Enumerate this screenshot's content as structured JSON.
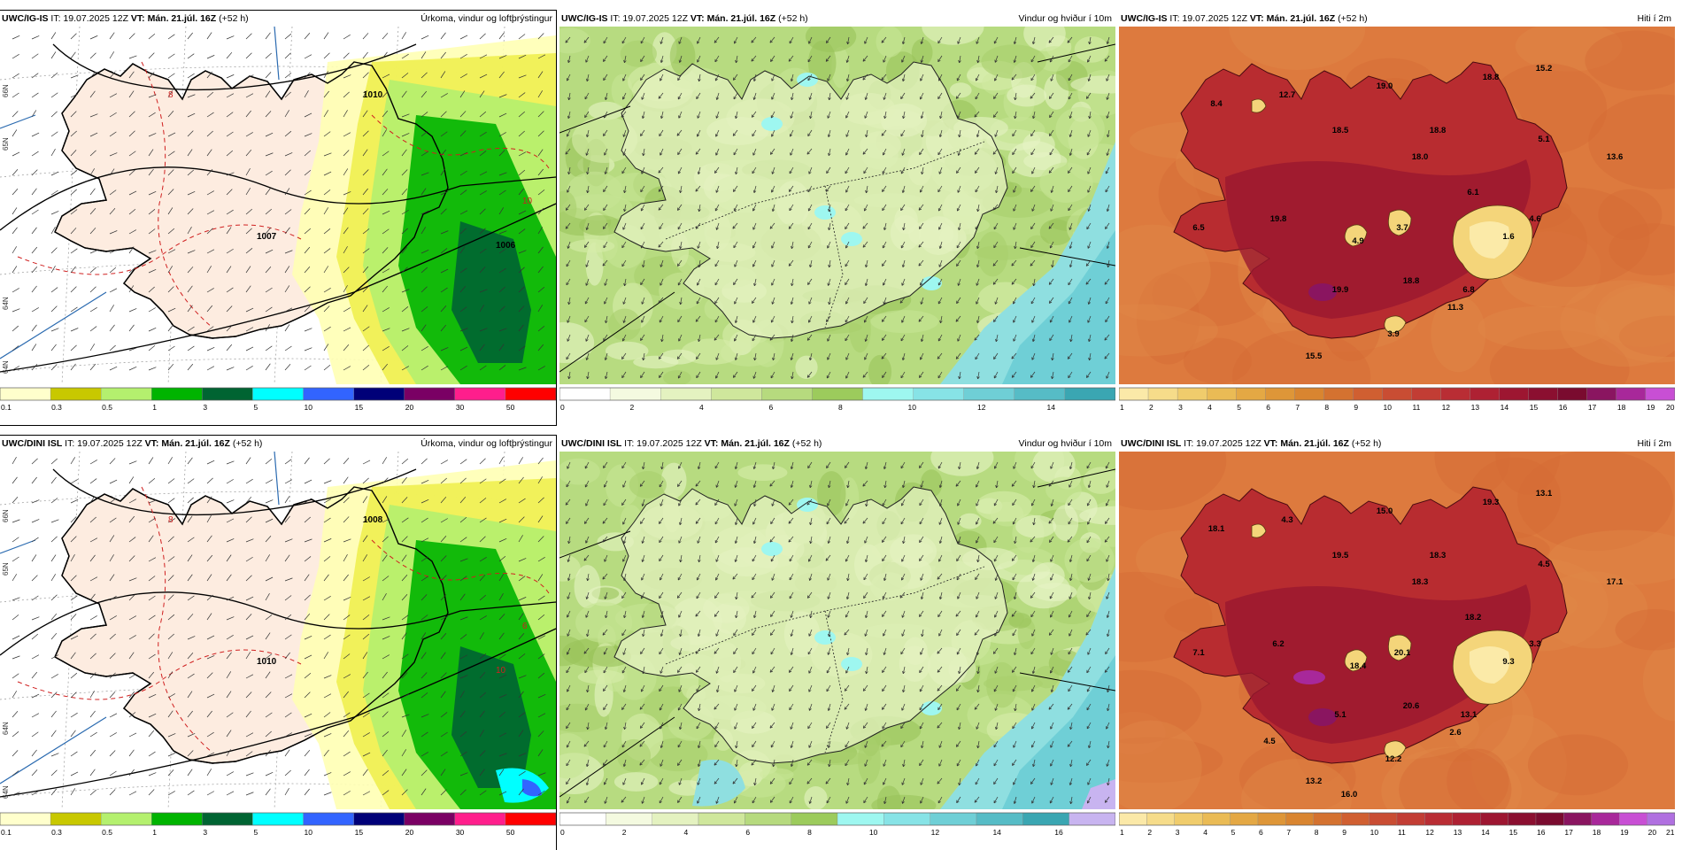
{
  "panels": [
    {
      "id": "igis-precip",
      "header": {
        "model": "UWC/IG-IS",
        "it_label": " IT: 19.07.2025 12Z ",
        "vt_label": "VT:",
        "vt_value": " Mán. 21.júl. 16Z",
        "lead": " (+52 h)",
        "title": "Úrkoma, vindur og loftþrýstingur"
      },
      "type": "precip",
      "map_labels": [
        {
          "t": "1007",
          "cls": "iso"
        },
        {
          "t": "8",
          "cls": "red"
        },
        {
          "t": "1010",
          "cls": "iso"
        },
        {
          "t": "1006",
          "cls": "iso"
        },
        {
          "t": "10",
          "cls": "red"
        }
      ],
      "lat_labels": [
        "66N",
        "65N",
        "64N",
        "64N"
      ],
      "colorbar": {
        "colors": [
          "#ffffcc",
          "#c8c800",
          "#b4f06e",
          "#00b400",
          "#006432",
          "#00ffff",
          "#3264ff",
          "#000078",
          "#7a0064",
          "#ff1e8c",
          "#ff0000"
        ],
        "labels": [
          "0.1",
          "0.3",
          "0.5",
          "1",
          "3",
          "5",
          "10",
          "15",
          "20",
          "30",
          "50"
        ]
      }
    },
    {
      "id": "igis-wind",
      "header": {
        "model": "UWC/IG-IS",
        "it_label": " IT: 19.07.2025 12Z ",
        "vt_label": "VT:",
        "vt_value": " Mán. 21.júl. 16Z",
        "lead": " (+52 h)",
        "title": "Vindur og hviður í 10m"
      },
      "type": "wind",
      "colorbar": {
        "colors": [
          "#ffffff",
          "#f4fae0",
          "#e4f2c0",
          "#cfe79c",
          "#b6da7e",
          "#9ccb5c",
          "#9ef7f0",
          "#87e3e6",
          "#6fcfd6",
          "#56bcc6",
          "#3aa6b2"
        ],
        "labels": [
          "0",
          "2",
          "4",
          "6",
          "8",
          "10",
          "12",
          "14"
        ]
      }
    },
    {
      "id": "igis-temp",
      "header": {
        "model": "UWC/IG-IS",
        "it_label": " IT: 19.07.2025 12Z ",
        "vt_label": "VT:",
        "vt_value": " Mán. 21.júl. 16Z",
        "lead": " (+52 h)",
        "title": "Hiti í 2m"
      },
      "type": "temp",
      "temp_labels": [
        "15.2",
        "18.8",
        "12.7",
        "8.4",
        "19.0",
        "18.8",
        "18.5",
        "18.0",
        "5.1",
        "13.6",
        "6.1",
        "6.5",
        "19.8",
        "4.9",
        "3.7",
        "4.6",
        "1.6",
        "19.9",
        "18.8",
        "6.8",
        "11.3",
        "3.9",
        "15.5"
      ],
      "colorbar": {
        "colors": [
          "#fbe9a8",
          "#f6dc8a",
          "#f0cc6c",
          "#eabb55",
          "#e4a844",
          "#de9638",
          "#d98530",
          "#d47230",
          "#d05f31",
          "#c94d33",
          "#c23d34",
          "#b92d34",
          "#ae2133",
          "#9d1631",
          "#8b0f30",
          "#7a0b2f",
          "#8a1560",
          "#a8289a",
          "#c84fd4"
        ],
        "labels": [
          "1",
          "2",
          "3",
          "4",
          "5",
          "6",
          "7",
          "8",
          "9",
          "10",
          "11",
          "12",
          "13",
          "14",
          "15",
          "16",
          "17",
          "18",
          "19",
          "20"
        ]
      }
    },
    {
      "id": "dini-precip",
      "header": {
        "model": "UWC/DINI ISL",
        "it_label": " IT: 19.07.2025 12Z ",
        "vt_label": "VT:",
        "vt_value": " Mán. 21.júl. 16Z",
        "lead": " (+52 h)",
        "title": "Úrkoma, vindur og loftþrýstingur"
      },
      "type": "precip",
      "map_labels": [
        {
          "t": "1010",
          "cls": "iso"
        },
        {
          "t": "8",
          "cls": "red"
        },
        {
          "t": "1008",
          "cls": "iso"
        },
        {
          "t": "10",
          "cls": "red"
        },
        {
          "t": "6",
          "cls": "red"
        }
      ],
      "lat_labels": [
        "66N",
        "65N",
        "64N",
        "64N"
      ],
      "colorbar": {
        "colors": [
          "#ffffcc",
          "#c8c800",
          "#b4f06e",
          "#00b400",
          "#006432",
          "#00ffff",
          "#3264ff",
          "#000078",
          "#7a0064",
          "#ff1e8c",
          "#ff0000"
        ],
        "labels": [
          "0.1",
          "0.3",
          "0.5",
          "1",
          "3",
          "5",
          "10",
          "15",
          "20",
          "30",
          "50"
        ]
      }
    },
    {
      "id": "dini-wind",
      "header": {
        "model": "UWC/DINI ISL",
        "it_label": " IT: 19.07.2025 12Z ",
        "vt_label": "VT:",
        "vt_value": " Mán. 21.júl. 16Z",
        "lead": " (+52 h)",
        "title": "Vindur og hviður í 10m"
      },
      "type": "wind",
      "colorbar": {
        "colors": [
          "#ffffff",
          "#f4fae0",
          "#e4f2c0",
          "#cfe79c",
          "#b6da7e",
          "#9ccb5c",
          "#9ef7f0",
          "#87e3e6",
          "#6fcfd6",
          "#56bcc6",
          "#3aa6b2",
          "#c8b4f0"
        ],
        "labels": [
          "0",
          "2",
          "4",
          "6",
          "8",
          "10",
          "12",
          "14",
          "16"
        ]
      }
    },
    {
      "id": "dini-temp",
      "header": {
        "model": "UWC/DINI ISL",
        "it_label": " IT: 19.07.2025 12Z ",
        "vt_label": "VT:",
        "vt_value": " Mán. 21.júl. 16Z",
        "lead": " (+52 h)",
        "title": "Hiti í 2m"
      },
      "type": "temp",
      "temp_labels": [
        "13.1",
        "19.3",
        "4.3",
        "18.1",
        "15.0",
        "18.3",
        "19.5",
        "18.3",
        "4.5",
        "17.1",
        "18.2",
        "7.1",
        "6.2",
        "18.4",
        "20.1",
        "3.3",
        "9.3",
        "5.1",
        "20.6",
        "13.1",
        "2.6",
        "12.2",
        "13.2",
        "4.5",
        "16.0"
      ],
      "colorbar": {
        "colors": [
          "#fbe9a8",
          "#f6dc8a",
          "#f0cc6c",
          "#eabb55",
          "#e4a844",
          "#de9638",
          "#d98530",
          "#d47230",
          "#d05f31",
          "#c94d33",
          "#c23d34",
          "#b92d34",
          "#ae2133",
          "#9d1631",
          "#8b0f30",
          "#7a0b2f",
          "#8a1560",
          "#a8289a",
          "#c84fd4",
          "#b070e0"
        ],
        "labels": [
          "1",
          "2",
          "3",
          "4",
          "5",
          "6",
          "7",
          "8",
          "9",
          "10",
          "11",
          "12",
          "13",
          "14",
          "15",
          "16",
          "17",
          "18",
          "19",
          "20",
          "21"
        ]
      }
    }
  ]
}
